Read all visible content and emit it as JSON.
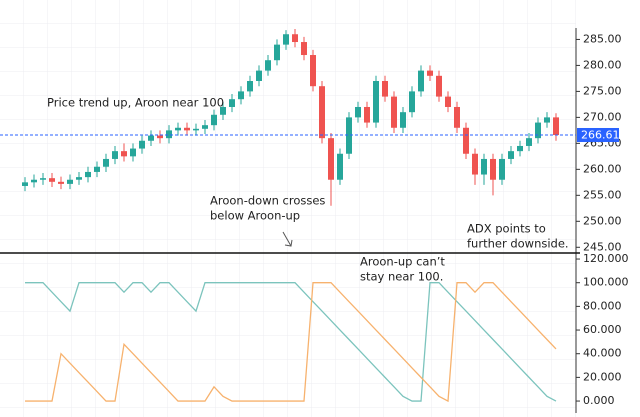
{
  "chart_data": [
    {
      "type": "candlestick",
      "annotations": [
        [
          "Price trend up, Aroon near 100"
        ],
        [
          "Aroon-down crosses",
          "below Aroon-up"
        ],
        [
          "ADX points to",
          "further downside."
        ]
      ],
      "open": [
        256.8,
        257.5,
        258,
        258.3,
        257.6,
        257.2,
        258,
        258.5,
        259.5,
        260.5,
        262,
        263.5,
        262.5,
        264,
        265.5,
        266.5,
        266,
        267.5,
        268,
        267.5,
        267.8,
        268.5,
        270.5,
        272,
        273.5,
        275,
        277,
        279,
        281,
        284,
        286,
        284.5,
        282,
        276,
        266,
        258,
        263,
        270,
        272,
        269,
        277,
        274,
        268,
        271,
        275,
        279,
        278,
        274,
        272,
        268,
        263,
        259,
        262,
        258,
        262,
        263.5,
        264.5,
        266,
        269,
        270
      ],
      "high": [
        258.5,
        259,
        259.3,
        259.3,
        258.6,
        259,
        259.5,
        260.5,
        261.5,
        263,
        264.5,
        265,
        265,
        266.5,
        267.5,
        267.5,
        268.5,
        269,
        269,
        268.8,
        269.5,
        271.5,
        273,
        274.5,
        276,
        278,
        280,
        282,
        285,
        286.8,
        287,
        285.5,
        283,
        277,
        267,
        264,
        271,
        273,
        273,
        278,
        278,
        275,
        272,
        276,
        280,
        280,
        279,
        275,
        273,
        269,
        264,
        263,
        263,
        263,
        264.5,
        265.5,
        267,
        270,
        271,
        270.8
      ],
      "low": [
        255.8,
        256.5,
        257,
        256.6,
        256.2,
        256.2,
        257,
        257.5,
        258.5,
        259.5,
        261,
        261.5,
        261.5,
        263,
        264.5,
        265,
        265,
        266.5,
        266.5,
        266.5,
        266.8,
        267.5,
        269.5,
        271,
        272.5,
        274,
        276,
        278,
        280,
        283,
        283.5,
        281,
        275,
        265,
        253,
        257,
        262,
        269,
        268,
        268,
        273,
        267,
        267,
        270,
        274,
        277,
        273,
        271,
        267,
        262,
        257,
        257,
        255,
        257,
        261,
        262.5,
        263.5,
        265,
        268,
        265.5
      ],
      "close": [
        257.5,
        258,
        258.3,
        257.6,
        257.2,
        258,
        258.5,
        259.5,
        260.5,
        262,
        263.5,
        262.5,
        264,
        265.5,
        266.5,
        266,
        267.5,
        268,
        267.5,
        267.8,
        268.5,
        270.5,
        272,
        273.5,
        275,
        277,
        279,
        281,
        284,
        286,
        284.5,
        282,
        276,
        266,
        258,
        263,
        270,
        272,
        269,
        277,
        274,
        268,
        271,
        275,
        279,
        278,
        274,
        272,
        268,
        263,
        259,
        262,
        258,
        262,
        263.5,
        264.5,
        266,
        269,
        270,
        266.6
      ],
      "up_color": "#26a69a",
      "down_color": "#ef5350",
      "ylim": [
        243.9,
        287.2
      ],
      "yticks": [
        {
          "value": 245,
          "label": "245.00"
        },
        {
          "value": 250,
          "label": "250.00"
        },
        {
          "value": 255,
          "label": "255.00"
        },
        {
          "value": 260,
          "label": "260.00"
        },
        {
          "value": 265,
          "label": "265.00"
        },
        {
          "value": 270,
          "label": "270.00"
        },
        {
          "value": 275,
          "label": "275.00"
        },
        {
          "value": 280,
          "label": "280.00"
        },
        {
          "value": 285,
          "label": "285.00"
        }
      ],
      "last_price": 266.61,
      "last_price_color": "#2962ff"
    },
    {
      "type": "line",
      "annotations": [
        [
          "Aroon-up can’t",
          "stay near 100."
        ]
      ],
      "series": [
        {
          "color": "#7cc4bd",
          "values": [
            100,
            100,
            100,
            92,
            84,
            76,
            100,
            100,
            100,
            100,
            100,
            92,
            100,
            100,
            92,
            100,
            100,
            92,
            84,
            76,
            100,
            100,
            100,
            100,
            100,
            100,
            100,
            100,
            100,
            100,
            100,
            92,
            84,
            76,
            68,
            60,
            52,
            44,
            36,
            28,
            20,
            12,
            4,
            0,
            0,
            100,
            100,
            92,
            84,
            76,
            68,
            60,
            52,
            44,
            36,
            28,
            20,
            12,
            4,
            0
          ]
        },
        {
          "color": "#f7b26e",
          "values": [
            0,
            0,
            0,
            0,
            40,
            32,
            24,
            16,
            8,
            0,
            0,
            48,
            40,
            32,
            24,
            16,
            8,
            0,
            0,
            0,
            0,
            12,
            4,
            0,
            0,
            0,
            0,
            0,
            0,
            0,
            0,
            0,
            100,
            100,
            100,
            92,
            84,
            76,
            68,
            60,
            52,
            44,
            36,
            28,
            20,
            12,
            4,
            0,
            100,
            100,
            92,
            100,
            100,
            92,
            84,
            76,
            68,
            60,
            52,
            44
          ]
        }
      ],
      "ylim": [
        -10.1,
        125.1
      ],
      "yticks": [
        {
          "value": 0,
          "label": "0.000"
        },
        {
          "value": 20,
          "label": "20.000"
        },
        {
          "value": 40,
          "label": "40.000"
        },
        {
          "value": 60,
          "label": "60.000"
        },
        {
          "value": 80,
          "label": "80.000"
        },
        {
          "value": 100,
          "label": "100.000"
        },
        {
          "value": 120,
          "label": "120.000"
        }
      ]
    }
  ]
}
